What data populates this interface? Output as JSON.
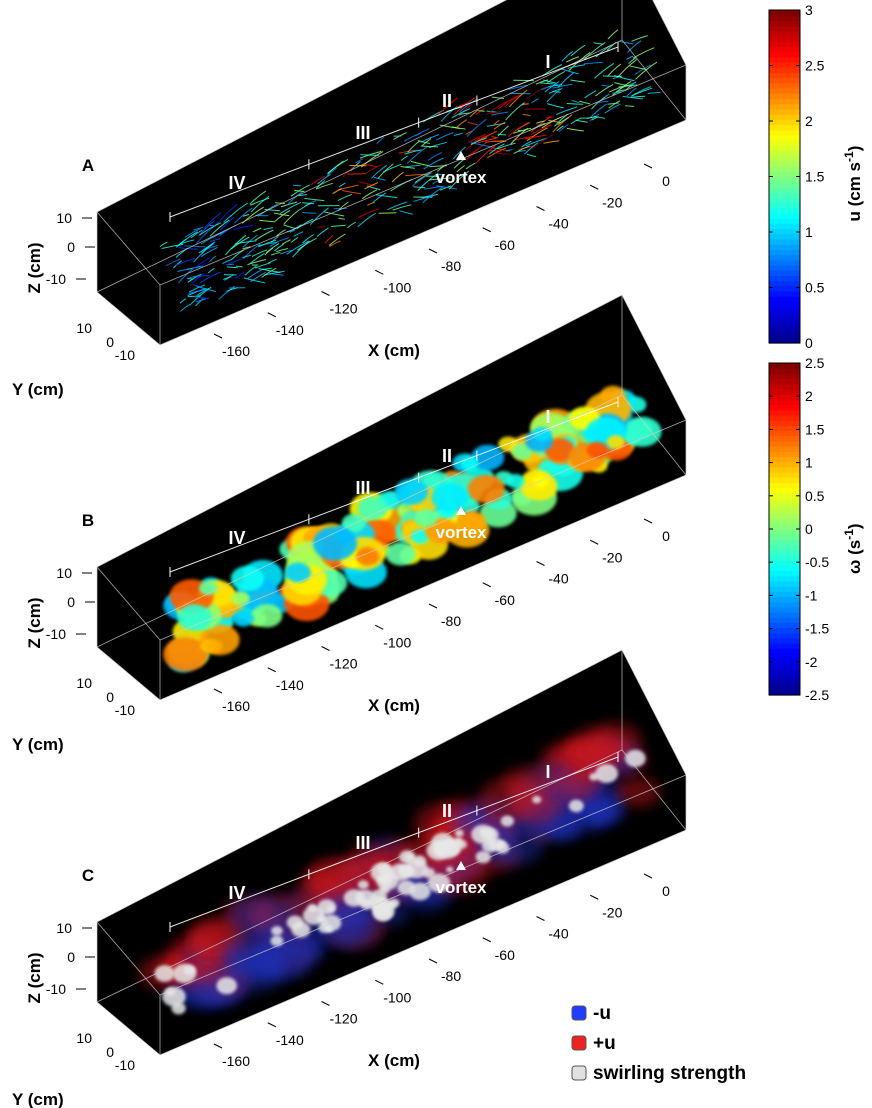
{
  "panels": [
    {
      "id": "A",
      "fill": "streamlines",
      "vortex_label": "vortex",
      "y_axis_label": "Y (cm)",
      "z_axis_label": "Z (cm)",
      "x_axis_label": "X (cm)",
      "x_ticks": [
        "0",
        "-20",
        "-40",
        "-60",
        "-80",
        "-100",
        "-120",
        "-140",
        "-160"
      ],
      "z_ticks": [
        "10",
        "0",
        "-10"
      ],
      "y_ticks": [
        "10",
        "0",
        "-10"
      ],
      "regions": [
        "I",
        "II",
        "III",
        "IV"
      ]
    },
    {
      "id": "B",
      "fill": "vorticity-isosurface",
      "vortex_label": "vortex",
      "y_axis_label": "Y (cm)",
      "z_axis_label": "Z (cm)",
      "x_axis_label": "X (cm)",
      "x_ticks": [
        "0",
        "-20",
        "-40",
        "-60",
        "-80",
        "-100",
        "-120",
        "-140",
        "-160"
      ],
      "z_ticks": [
        "10",
        "0",
        "-10"
      ],
      "y_ticks": [
        "10",
        "0",
        "-10"
      ],
      "regions": [
        "I",
        "II",
        "III",
        "IV"
      ]
    },
    {
      "id": "C",
      "fill": "velocity-swirl-isosurface",
      "vortex_label": "vortex",
      "y_axis_label": "Y (cm)",
      "z_axis_label": "Z (cm)",
      "x_axis_label": "X (cm)",
      "x_ticks": [
        "0",
        "-20",
        "-40",
        "-60",
        "-80",
        "-100",
        "-120",
        "-140",
        "-160"
      ],
      "z_ticks": [
        "10",
        "0",
        "-10"
      ],
      "y_ticks": [
        "10",
        "0",
        "-10"
      ],
      "regions": [
        "I",
        "II",
        "III",
        "IV"
      ]
    }
  ],
  "colorbars": [
    {
      "id": "u",
      "label": "u (cm s",
      "label_exponent": "-1",
      "label_close": ")",
      "min": 0,
      "max": 3,
      "ticks": [
        "3",
        "2.5",
        "2",
        "1.5",
        "1",
        "0.5",
        "0"
      ]
    },
    {
      "id": "omega",
      "label": "ω (s",
      "label_exponent": "-1",
      "label_close": ")",
      "min": -2.5,
      "max": 2.5,
      "ticks": [
        "2.5",
        "2",
        "1.5",
        "1",
        "0.5",
        "0",
        "-0.5",
        "-1",
        "-1.5",
        "-2",
        "-2.5"
      ]
    }
  ],
  "legend": [
    {
      "label": "-u",
      "color": "#1f3cff"
    },
    {
      "label": "+u",
      "color": "#ee2222"
    },
    {
      "label": "swirling strength",
      "color": "#e0e0e0"
    }
  ],
  "colors": {
    "box_background": "#000000",
    "box_edges": "#cfcfcf",
    "frame_labels": "#ffffff",
    "jet_stops": [
      "#00008f",
      "#0000ff",
      "#0080ff",
      "#00ffff",
      "#80ff80",
      "#ffff00",
      "#ff8000",
      "#ff0000",
      "#800000"
    ]
  }
}
